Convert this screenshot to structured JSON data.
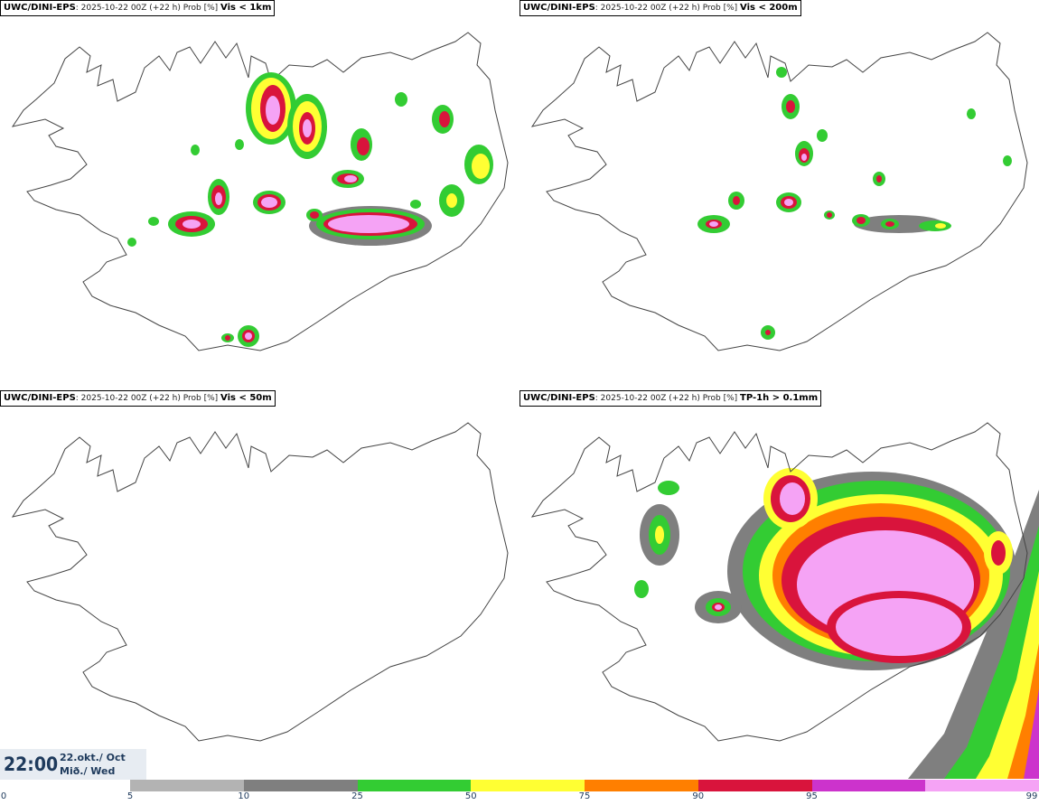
{
  "panels": [
    {
      "model": "UWC/DINI-EPS",
      "meta": ": 2025-10-22 00Z (+22 h) Prob [%]",
      "var": "Vis < 1km"
    },
    {
      "model": "UWC/DINI-EPS",
      "meta": ": 2025-10-22 00Z (+22 h) Prob [%]",
      "var": "Vis < 200m"
    },
    {
      "model": "UWC/DINI-EPS",
      "meta": ": 2025-10-22 00Z (+22 h) Prob [%]",
      "var": "Vis < 50m"
    },
    {
      "model": "UWC/DINI-EPS",
      "meta": ": 2025-10-22 00Z (+22 h) Prob [%]",
      "var": "TP-1h > 0.1mm"
    }
  ],
  "valid_time": {
    "time": "22:00",
    "date_line1": "22.okt./ Oct",
    "date_line2": "Mið./ Wed"
  },
  "colorbar": {
    "ticks": [
      "0",
      "5",
      "10",
      "25",
      "50",
      "75",
      "90",
      "95",
      "99"
    ],
    "colors": [
      "#b3b3b3",
      "#7f7f7f",
      "#33cc33",
      "#ffff33",
      "#ff7f00",
      "#d9143c",
      "#cc33cc",
      "#f5a3f5"
    ]
  }
}
